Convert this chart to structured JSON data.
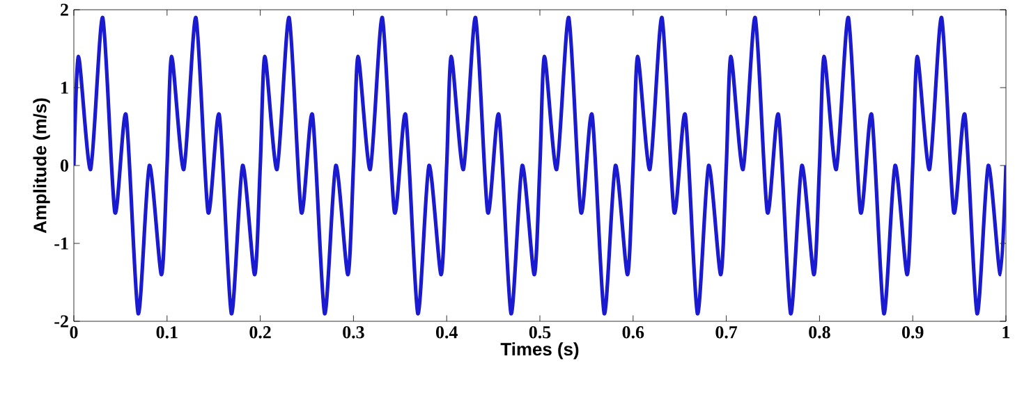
{
  "chart_data": {
    "type": "line",
    "xlabel": "Times (s)",
    "ylabel": "Amplitude (m/s)",
    "xlim": [
      0,
      1
    ],
    "ylim": [
      -2,
      2
    ],
    "xticks": [
      0,
      0.1,
      0.2,
      0.3,
      0.4,
      0.5,
      0.6,
      0.7,
      0.8,
      0.9,
      1
    ],
    "yticks": [
      -2,
      -1,
      0,
      1,
      2
    ],
    "grid": false,
    "marker": "none",
    "line_style": "solid",
    "series": [
      {
        "color": "#1a1ad0",
        "x": [
          0,
          0.005,
          0.018,
          0.031,
          0.044,
          0.056,
          0.069,
          0.081,
          0.094,
          0.1,
          0.105,
          0.118,
          0.131,
          0.144,
          0.156,
          0.169,
          0.181,
          0.194,
          0.2,
          0.205,
          0.218,
          0.231,
          0.244,
          0.256,
          0.269,
          0.281,
          0.294,
          0.3,
          0.305,
          0.318,
          0.331,
          0.344,
          0.356,
          0.369,
          0.381,
          0.394,
          0.4,
          0.405,
          0.418,
          0.431,
          0.444,
          0.456,
          0.469,
          0.481,
          0.494,
          0.5,
          0.505,
          0.518,
          0.531,
          0.544,
          0.556,
          0.569,
          0.581,
          0.594,
          0.6,
          0.605,
          0.618,
          0.631,
          0.644,
          0.656,
          0.669,
          0.681,
          0.694,
          0.7,
          0.705,
          0.718,
          0.731,
          0.744,
          0.756,
          0.769,
          0.781,
          0.794,
          0.8,
          0.805,
          0.818,
          0.831,
          0.844,
          0.856,
          0.869,
          0.881,
          0.894,
          0.9,
          0.905,
          0.918,
          0.931,
          0.944,
          0.956,
          0.969,
          0.981,
          0.994,
          1
        ],
        "values": [
          0,
          1.4,
          -0.05,
          1.9,
          -0.6,
          0.65,
          -1.9,
          0,
          -1.4,
          0,
          1.4,
          -0.05,
          1.9,
          -0.6,
          0.65,
          -1.9,
          0,
          -1.4,
          0,
          1.4,
          -0.05,
          1.9,
          -0.6,
          0.65,
          -1.9,
          0,
          -1.4,
          0,
          1.4,
          -0.05,
          1.9,
          -0.6,
          0.65,
          -1.9,
          0,
          -1.4,
          0,
          1.4,
          -0.05,
          1.9,
          -0.6,
          0.65,
          -1.9,
          0,
          -1.4,
          0,
          1.4,
          -0.05,
          1.9,
          -0.6,
          0.65,
          -1.9,
          0,
          -1.4,
          0,
          1.4,
          -0.05,
          1.9,
          -0.6,
          0.65,
          -1.9,
          0,
          -1.4,
          0,
          1.4,
          -0.05,
          1.9,
          -0.6,
          0.65,
          -1.9,
          0,
          -1.4,
          0,
          1.4,
          -0.05,
          1.9,
          -0.6,
          0.65,
          -1.9,
          0,
          -1.4,
          0,
          1.4,
          -0.05,
          1.9,
          -0.6,
          0.65,
          -1.9,
          0,
          -1.4,
          0
        ]
      }
    ]
  }
}
